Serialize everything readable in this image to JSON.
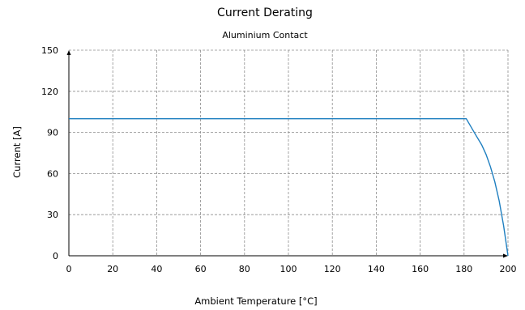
{
  "chart_data": {
    "type": "line",
    "title": "Current Derating",
    "subtitle": "Aluminium Contact",
    "xlabel": "Ambient Temperature [°C]",
    "ylabel": "Current [A]",
    "xlim": [
      0,
      200
    ],
    "ylim": [
      0,
      150
    ],
    "xticks": [
      0,
      20,
      40,
      60,
      80,
      100,
      120,
      140,
      160,
      180,
      200
    ],
    "yticks": [
      0,
      30,
      60,
      90,
      120,
      150
    ],
    "grid": true,
    "series_color": "#1f7fc0",
    "series": [
      {
        "x": [
          0,
          181,
          185,
          188,
          190,
          192,
          194,
          196,
          198,
          200
        ],
        "y": [
          100,
          100,
          89,
          81,
          74,
          65,
          54,
          40,
          22,
          0
        ]
      }
    ]
  }
}
